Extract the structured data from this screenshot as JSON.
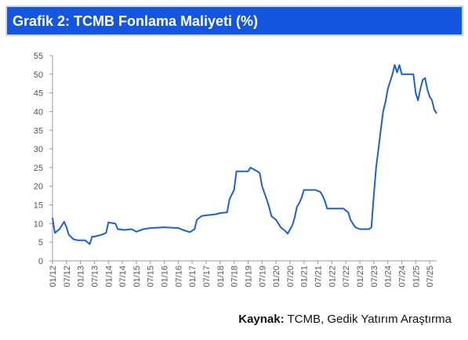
{
  "chart_data": {
    "type": "line",
    "title": "Grafik 2: TCMB Fonlama Maliyeti (%)",
    "xlim": [
      "01/12",
      "10/25"
    ],
    "xticks": [
      "01/12",
      "07/12",
      "01/13",
      "07/13",
      "01/14",
      "07/14",
      "01/15",
      "07/15",
      "01/16",
      "07/16",
      "01/17",
      "07/17",
      "01/18",
      "07/18",
      "01/19",
      "07/19",
      "01/20",
      "07/20",
      "01/21",
      "07/21",
      "01/22",
      "07/22",
      "01/23",
      "07/23",
      "01/24",
      "07/24",
      "01/25",
      "07/25"
    ],
    "ylim": [
      0,
      55
    ],
    "yticks": [
      0,
      5,
      10,
      15,
      20,
      25,
      30,
      35,
      40,
      45,
      50,
      55
    ],
    "grid": false,
    "x": [
      "01/12",
      "02/12",
      "04/12",
      "06/12",
      "07/12",
      "08/12",
      "10/12",
      "12/12",
      "03/13",
      "05/13",
      "06/13",
      "07/13",
      "10/13",
      "12/13",
      "01/14",
      "04/14",
      "05/14",
      "08/14",
      "11/14",
      "01/15",
      "04/15",
      "07/15",
      "01/16",
      "07/16",
      "09/16",
      "12/16",
      "02/17",
      "03/17",
      "05/17",
      "07/17",
      "11/17",
      "01/18",
      "04/18",
      "05/18",
      "06/18",
      "07/18",
      "08/18",
      "01/19",
      "02/19",
      "05/19",
      "06/19",
      "07/19",
      "09/19",
      "10/19",
      "11/19",
      "01/20",
      "03/20",
      "05/20",
      "06/20",
      "08/20",
      "09/20",
      "10/20",
      "11/20",
      "12/20",
      "01/21",
      "06/21",
      "08/21",
      "09/21",
      "10/21",
      "11/21",
      "06/22",
      "08/22",
      "09/22",
      "11/22",
      "01/23",
      "05/23",
      "06/23",
      "07/23",
      "08/23",
      "09/23",
      "10/23",
      "11/23",
      "12/23",
      "01/24",
      "03/24",
      "04/24",
      "05/24",
      "06/24",
      "07/24",
      "12/24",
      "01/25",
      "02/25",
      "03/25",
      "04/25",
      "05/25",
      "06/25",
      "07/25",
      "08/25",
      "09/25",
      "10/25"
    ],
    "series": [
      {
        "name": "TCMB Fonlama Maliyeti",
        "color": "#1f5fd6",
        "values": [
          11.5,
          7.5,
          8.5,
          10.5,
          9,
          7,
          5.8,
          5.5,
          5.5,
          4.5,
          6.5,
          6.5,
          7,
          7.5,
          10.3,
          10,
          8.5,
          8.3,
          8.5,
          7.8,
          8.5,
          8.8,
          9,
          8.8,
          8.3,
          7.7,
          8.5,
          11,
          12,
          12.2,
          12.5,
          12.8,
          13,
          16.5,
          17.8,
          19,
          24,
          24,
          25,
          24,
          23.5,
          20,
          16.5,
          14.5,
          12,
          11,
          9,
          8,
          7.3,
          9.5,
          11.5,
          14.5,
          15.5,
          17,
          19,
          19,
          18.5,
          17.5,
          16,
          14,
          14,
          13,
          11,
          9,
          8.5,
          8.5,
          9,
          17.5,
          25,
          30,
          35,
          40,
          42.5,
          46,
          50,
          52.5,
          50.5,
          52.5,
          50,
          50,
          45,
          43,
          46,
          48.5,
          49,
          46,
          44,
          43,
          40.5,
          39.5
        ]
      }
    ]
  },
  "source": {
    "label": "Kaynak:",
    "text": "TCMB, Gedik Yatırım Araştırma"
  }
}
